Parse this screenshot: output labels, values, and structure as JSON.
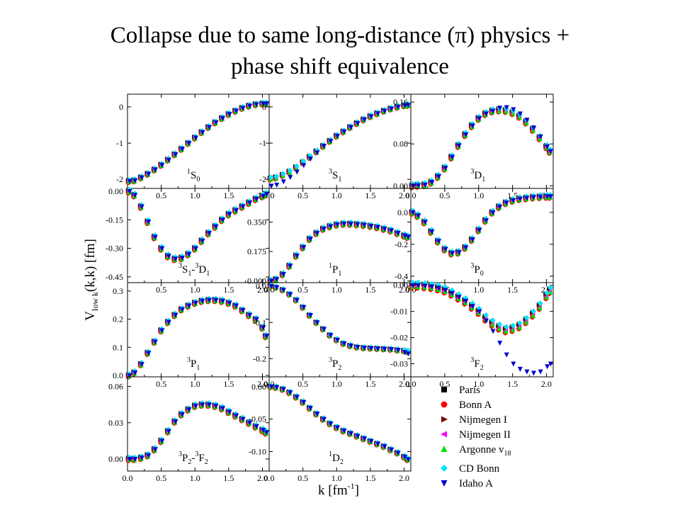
{
  "slide": {
    "title_line1": "Collapse due to same long-distance (π) physics +",
    "title_line2": "phase shift equivalence"
  },
  "chart_data": {
    "type": "scatter",
    "xlabel": "k [fm",
    "xlabel_sup": "-1",
    "xlabel_end": "]",
    "ylabel": "V",
    "ylabel_sub": "low k",
    "ylabel_end": "(k,k) [fm]",
    "grid": false,
    "legend_position": "bottom-right",
    "xlim": [
      0.0,
      2.1
    ],
    "xticks": [
      "0.0",
      "0.5",
      "1.0",
      "1.5",
      "2.0"
    ],
    "series": [
      {
        "name": "Paris",
        "marker": "square",
        "color": "#000000"
      },
      {
        "name": "Bonn A",
        "marker": "circle",
        "color": "#ff0000"
      },
      {
        "name": "Nijmegen I",
        "marker": "triangle-right",
        "color": "#800000"
      },
      {
        "name": "Nijmegen II",
        "marker": "triangle-left",
        "color": "#ff00ff"
      },
      {
        "name": "Argonne v",
        "name_sub": "18",
        "marker": "triangle-up",
        "color": "#00dd00"
      },
      {
        "name": "CD Bonn",
        "marker": "diamond",
        "color": "#00e5ff"
      },
      {
        "name": "Idaho A",
        "marker": "triangle-down",
        "color": "#0000cc"
      }
    ],
    "panels": [
      {
        "label_sup": "1",
        "label": "S",
        "label_sub": "0",
        "ylim": [
          -2.25,
          0.35
        ],
        "yticks": [
          0,
          -1,
          -2
        ],
        "ytick_labels": [
          "0",
          "-1",
          "-2"
        ],
        "ytick_side": "left",
        "x": [
          0.02,
          0.1,
          0.2,
          0.3,
          0.4,
          0.5,
          0.6,
          0.7,
          0.8,
          0.9,
          1.0,
          1.1,
          1.2,
          1.3,
          1.4,
          1.5,
          1.6,
          1.7,
          1.8,
          1.9,
          2.0,
          2.05
        ],
        "y": [
          -2.05,
          -2.03,
          -1.95,
          -1.85,
          -1.73,
          -1.6,
          -1.46,
          -1.31,
          -1.16,
          -1.0,
          -0.85,
          -0.7,
          -0.56,
          -0.43,
          -0.31,
          -0.2,
          -0.11,
          -0.03,
          0.03,
          0.07,
          0.09,
          0.09
        ],
        "spread": 0.04,
        "idaho_offset": [
          0,
          0,
          0,
          0,
          0,
          0,
          0,
          0,
          0,
          0,
          0,
          0,
          0,
          0,
          0,
          0,
          0,
          0,
          0,
          0,
          0,
          0
        ]
      },
      {
        "label_sup": "3",
        "label": "S",
        "label_sub": "1",
        "ylim": [
          -2.25,
          0.35
        ],
        "yticks": [
          0,
          -1,
          -2
        ],
        "ytick_labels": [
          "0",
          "-1",
          "-2"
        ],
        "ytick_side": "left",
        "x": [
          0.02,
          0.1,
          0.2,
          0.3,
          0.4,
          0.5,
          0.6,
          0.7,
          0.8,
          0.9,
          1.0,
          1.1,
          1.2,
          1.3,
          1.4,
          1.5,
          1.6,
          1.7,
          1.8,
          1.9,
          2.0,
          2.05
        ],
        "y": [
          -1.98,
          -1.95,
          -1.88,
          -1.79,
          -1.67,
          -1.53,
          -1.38,
          -1.23,
          -1.08,
          -0.94,
          -0.8,
          -0.68,
          -0.56,
          -0.45,
          -0.35,
          -0.26,
          -0.18,
          -0.11,
          -0.05,
          0.0,
          0.04,
          0.05
        ],
        "spread": 0.04,
        "idaho_offset": [
          -0.2,
          -0.2,
          -0.18,
          -0.15,
          -0.12,
          -0.08,
          -0.05,
          -0.03,
          0,
          0,
          0,
          0,
          0,
          0,
          0,
          0,
          0,
          0,
          0,
          0,
          0,
          0
        ]
      },
      {
        "label_sup": "3",
        "label": "D",
        "label_sub": "1",
        "ylim": [
          -0.005,
          0.175
        ],
        "yticks": [
          0.16,
          0.08,
          0.0
        ],
        "ytick_labels": [
          "0.16",
          "0.08",
          "0.00"
        ],
        "ytick_side": "left",
        "x": [
          0.02,
          0.1,
          0.2,
          0.3,
          0.4,
          0.5,
          0.6,
          0.7,
          0.8,
          0.9,
          1.0,
          1.1,
          1.2,
          1.3,
          1.4,
          1.5,
          1.6,
          1.7,
          1.8,
          1.9,
          2.0,
          2.05
        ],
        "y": [
          0.0,
          0.001,
          0.002,
          0.007,
          0.018,
          0.034,
          0.055,
          0.077,
          0.098,
          0.115,
          0.129,
          0.138,
          0.143,
          0.145,
          0.144,
          0.14,
          0.133,
          0.122,
          0.108,
          0.092,
          0.075,
          0.066
        ],
        "spread": 0.004,
        "idaho_offset": [
          0,
          0,
          0,
          0,
          0,
          0,
          0,
          0,
          0,
          0,
          0,
          0,
          0,
          0.004,
          0.006,
          0.006,
          0.005,
          0.004,
          0.003,
          0.002,
          0,
          0
        ]
      },
      {
        "label_sup": "3",
        "label": "S",
        "label_sub": "1",
        "label2": "-",
        "label2_sup": "3",
        "label2_main": "D",
        "label2_sub": "1",
        "ylim": [
          -0.48,
          0.015
        ],
        "yticks": [
          0.0,
          -0.15,
          -0.3,
          -0.45
        ],
        "ytick_labels": [
          "0.00",
          "-0.15",
          "-0.30",
          "-0.45"
        ],
        "ytick_side": "left",
        "x": [
          0.02,
          0.1,
          0.2,
          0.3,
          0.4,
          0.5,
          0.6,
          0.7,
          0.8,
          0.9,
          1.0,
          1.1,
          1.2,
          1.3,
          1.4,
          1.5,
          1.6,
          1.7,
          1.8,
          1.9,
          2.0,
          2.05
        ],
        "y": [
          0.0,
          -0.02,
          -0.08,
          -0.16,
          -0.24,
          -0.3,
          -0.34,
          -0.355,
          -0.35,
          -0.33,
          -0.3,
          -0.26,
          -0.22,
          -0.185,
          -0.15,
          -0.12,
          -0.1,
          -0.08,
          -0.06,
          -0.04,
          -0.025,
          -0.015
        ],
        "spread": 0.01,
        "idaho_offset": [
          0,
          0,
          0,
          0,
          0,
          0,
          0,
          0,
          0,
          0,
          0,
          0,
          0,
          0,
          0,
          0,
          0,
          0,
          0,
          0,
          0,
          0
        ]
      },
      {
        "label_sup": "1",
        "label": "P",
        "label_sub": "1",
        "ylim": [
          -0.01,
          0.55
        ],
        "yticks": [
          0.35,
          0.175,
          0.0
        ],
        "ytick_labels": [
          "0.350",
          "0.175",
          "0.000"
        ],
        "ytick_side": "left",
        "x": [
          0.02,
          0.1,
          0.2,
          0.3,
          0.4,
          0.5,
          0.6,
          0.7,
          0.8,
          0.9,
          1.0,
          1.1,
          1.2,
          1.3,
          1.4,
          1.5,
          1.6,
          1.7,
          1.8,
          1.9,
          2.0,
          2.05
        ],
        "y": [
          0.0,
          0.01,
          0.04,
          0.09,
          0.15,
          0.2,
          0.25,
          0.285,
          0.31,
          0.325,
          0.335,
          0.34,
          0.34,
          0.337,
          0.333,
          0.327,
          0.32,
          0.31,
          0.3,
          0.285,
          0.27,
          0.262
        ],
        "spread": 0.01,
        "idaho_offset": [
          0,
          0,
          0,
          0,
          0,
          0,
          0,
          0,
          0,
          0,
          0,
          0,
          0,
          0,
          0,
          0,
          0,
          0,
          0,
          0,
          0,
          0
        ]
      },
      {
        "label_sup": "3",
        "label": "P",
        "label_sub": "0",
        "ylim": [
          -0.44,
          0.15
        ],
        "yticks": [
          0.0,
          -0.2,
          -0.4
        ],
        "ytick_labels": [
          "0.0",
          "-0.2",
          "-0.4"
        ],
        "ytick_side": "left",
        "x": [
          0.02,
          0.1,
          0.2,
          0.3,
          0.4,
          0.5,
          0.6,
          0.7,
          0.8,
          0.9,
          1.0,
          1.1,
          1.2,
          1.3,
          1.4,
          1.5,
          1.6,
          1.7,
          1.8,
          1.9,
          2.0,
          2.05
        ],
        "y": [
          0.0,
          -0.02,
          -0.06,
          -0.12,
          -0.18,
          -0.23,
          -0.255,
          -0.25,
          -0.22,
          -0.17,
          -0.11,
          -0.05,
          0.0,
          0.035,
          0.06,
          0.075,
          0.085,
          0.09,
          0.095,
          0.098,
          0.1,
          0.1
        ],
        "spread": 0.012,
        "idaho_offset": [
          0,
          0,
          0,
          0,
          0,
          0,
          0,
          0,
          0,
          0,
          0,
          0,
          0,
          0,
          0,
          0,
          0,
          0,
          0,
          0,
          0,
          0
        ]
      },
      {
        "label_sup": "3",
        "label": "P",
        "label_sub": "1",
        "ylim": [
          -0.005,
          0.33
        ],
        "yticks": [
          0.3,
          0.2,
          0.1,
          0.0
        ],
        "ytick_labels": [
          "0.3",
          "0.2",
          "0.1",
          "0.0"
        ],
        "ytick_side": "left",
        "x": [
          0.02,
          0.1,
          0.2,
          0.3,
          0.4,
          0.5,
          0.6,
          0.7,
          0.8,
          0.9,
          1.0,
          1.1,
          1.2,
          1.3,
          1.4,
          1.5,
          1.6,
          1.7,
          1.8,
          1.9,
          2.0,
          2.05
        ],
        "y": [
          0.0,
          0.01,
          0.04,
          0.08,
          0.12,
          0.16,
          0.19,
          0.215,
          0.235,
          0.248,
          0.258,
          0.265,
          0.268,
          0.268,
          0.265,
          0.258,
          0.248,
          0.232,
          0.215,
          0.2,
          0.17,
          0.14
        ],
        "spread": 0.006,
        "idaho_offset": [
          0,
          0,
          0,
          0,
          0,
          0,
          0,
          0,
          0,
          0,
          0,
          0,
          0,
          0,
          0,
          0,
          0,
          0,
          0,
          0,
          0,
          0
        ]
      },
      {
        "label_sup": "3",
        "label": "P",
        "label_sub": "2",
        "ylim": [
          -0.25,
          0.01
        ],
        "yticks": [
          0.0,
          -0.1,
          -0.2
        ],
        "ytick_labels": [
          "0.0",
          "-0.1",
          "-0.2"
        ],
        "ytick_side": "left",
        "x": [
          0.02,
          0.1,
          0.2,
          0.3,
          0.4,
          0.5,
          0.6,
          0.7,
          0.8,
          0.9,
          1.0,
          1.1,
          1.2,
          1.3,
          1.4,
          1.5,
          1.6,
          1.7,
          1.8,
          1.9,
          2.0,
          2.05
        ],
        "y": [
          0.0,
          -0.003,
          -0.01,
          -0.022,
          -0.038,
          -0.058,
          -0.08,
          -0.1,
          -0.118,
          -0.135,
          -0.148,
          -0.158,
          -0.164,
          -0.168,
          -0.17,
          -0.171,
          -0.172,
          -0.173,
          -0.174,
          -0.176,
          -0.178,
          -0.18
        ],
        "spread": 0.003,
        "idaho_offset": [
          0,
          0,
          0,
          0,
          0,
          0,
          0,
          0,
          0,
          0,
          0,
          0,
          0,
          0,
          0,
          0,
          0,
          0,
          0,
          0,
          -0.004,
          -0.006
        ]
      },
      {
        "label_sup": "3",
        "label": "F",
        "label_sub": "2",
        "ylim": [
          -0.035,
          0.001
        ],
        "yticks": [
          0.0,
          -0.01,
          -0.02,
          -0.03
        ],
        "ytick_labels": [
          "0.00",
          "-0.01",
          "-0.02",
          "-0.03"
        ],
        "ytick_side": "left",
        "x": [
          0.02,
          0.1,
          0.2,
          0.3,
          0.4,
          0.5,
          0.6,
          0.7,
          0.8,
          0.9,
          1.0,
          1.1,
          1.2,
          1.3,
          1.4,
          1.5,
          1.6,
          1.7,
          1.8,
          1.9,
          2.0,
          2.05
        ],
        "y": [
          0.0,
          0.0,
          -0.0002,
          -0.0005,
          -0.001,
          -0.0018,
          -0.003,
          -0.0045,
          -0.006,
          -0.008,
          -0.01,
          -0.0125,
          -0.0145,
          -0.016,
          -0.017,
          -0.0165,
          -0.0155,
          -0.0135,
          -0.011,
          -0.008,
          -0.004,
          -0.002
        ],
        "spread": 0.0012,
        "idaho_offset": [
          0,
          0,
          0,
          0,
          0,
          0,
          0,
          0,
          0,
          0,
          0,
          -0.001,
          -0.003,
          -0.006,
          -0.0095,
          -0.0135,
          -0.0165,
          -0.0195,
          -0.0225,
          -0.025,
          -0.027,
          -0.028
        ]
      },
      {
        "label_sup": "3",
        "label": "P",
        "label_sub": "2",
        "label2": "-",
        "label2_sup": "3",
        "label2_main": "F",
        "label2_sub": "2",
        "ylim": [
          -0.01,
          0.068
        ],
        "yticks": [
          0.06,
          0.03,
          0.0
        ],
        "ytick_labels": [
          "0.06",
          "0.03",
          "0.00"
        ],
        "ytick_side": "left",
        "x": [
          0.02,
          0.1,
          0.2,
          0.3,
          0.4,
          0.5,
          0.6,
          0.7,
          0.8,
          0.9,
          1.0,
          1.1,
          1.2,
          1.3,
          1.4,
          1.5,
          1.6,
          1.7,
          1.8,
          1.9,
          2.0,
          2.05
        ],
        "y": [
          0.0,
          0.0,
          0.001,
          0.003,
          0.008,
          0.015,
          0.023,
          0.031,
          0.037,
          0.041,
          0.044,
          0.045,
          0.045,
          0.044,
          0.042,
          0.039,
          0.036,
          0.033,
          0.03,
          0.027,
          0.024,
          0.022
        ],
        "spread": 0.0015,
        "idaho_offset": [
          0,
          0,
          0,
          0,
          0,
          0,
          0,
          0,
          0,
          0,
          0,
          0,
          0,
          0,
          0,
          0,
          0,
          0,
          0,
          0,
          0,
          0
        ]
      },
      {
        "label_sup": "1",
        "label": "D",
        "label_sub": "2",
        "ylim": [
          -0.13,
          0.015
        ],
        "yticks": [
          0.0,
          -0.05,
          -0.1
        ],
        "ytick_labels": [
          "0.00",
          "-0.05",
          "-0.10"
        ],
        "ytick_side": "left",
        "x": [
          0.02,
          0.1,
          0.2,
          0.3,
          0.4,
          0.5,
          0.6,
          0.7,
          0.8,
          0.9,
          1.0,
          1.1,
          1.2,
          1.3,
          1.4,
          1.5,
          1.6,
          1.7,
          1.8,
          1.9,
          2.0,
          2.05
        ],
        "y": [
          0.0,
          -0.001,
          -0.004,
          -0.009,
          -0.016,
          -0.024,
          -0.033,
          -0.042,
          -0.05,
          -0.057,
          -0.063,
          -0.068,
          -0.072,
          -0.076,
          -0.08,
          -0.084,
          -0.088,
          -0.092,
          -0.097,
          -0.102,
          -0.108,
          -0.112
        ],
        "spread": 0.002,
        "idaho_offset": [
          0,
          0,
          0,
          0,
          0,
          0,
          0,
          0,
          0,
          0,
          0,
          0,
          0,
          0,
          0,
          0,
          0,
          0,
          0,
          0,
          0,
          0
        ]
      }
    ]
  }
}
